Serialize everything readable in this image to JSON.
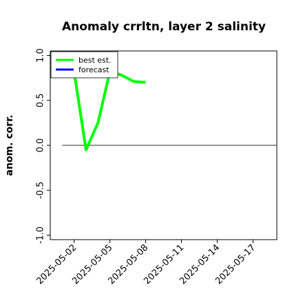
{
  "chart_data": {
    "type": "line",
    "title": "Anomaly crrltn, layer 2 salinity",
    "xlabel": "",
    "ylabel": "anom. corr.",
    "ylim": [
      -1.05,
      1.05
    ],
    "xlim": [
      "2025-04-30",
      "2025-05-19"
    ],
    "yticks": [
      1.0,
      0.5,
      0.0,
      -0.5,
      -1.0
    ],
    "ytick_labels": [
      "1.0",
      "0.5",
      "0.0",
      "-0.5",
      "-1.0"
    ],
    "xticks": [
      "2025-05-02",
      "2025-05-05",
      "2025-05-08",
      "2025-05-11",
      "2025-05-14",
      "2025-05-17"
    ],
    "highlighted_xtick": "2025-05-08",
    "highlight_color": "#228B22",
    "grid": false,
    "legend_position": "top-left",
    "reference_line": {
      "y": 0.0,
      "from": "2025-05-01",
      "to": "2025-05-19",
      "color": "#555555"
    },
    "series": [
      {
        "name": "best est.",
        "color": "#00ff00",
        "x": [
          "2025-05-02",
          "2025-05-03",
          "2025-05-04",
          "2025-05-05",
          "2025-05-06",
          "2025-05-07",
          "2025-05-08"
        ],
        "y": [
          0.82,
          -0.05,
          0.25,
          0.82,
          0.78,
          0.71,
          0.7
        ]
      },
      {
        "name": "forecast",
        "color": "#0000ff",
        "x": [],
        "y": []
      }
    ]
  }
}
